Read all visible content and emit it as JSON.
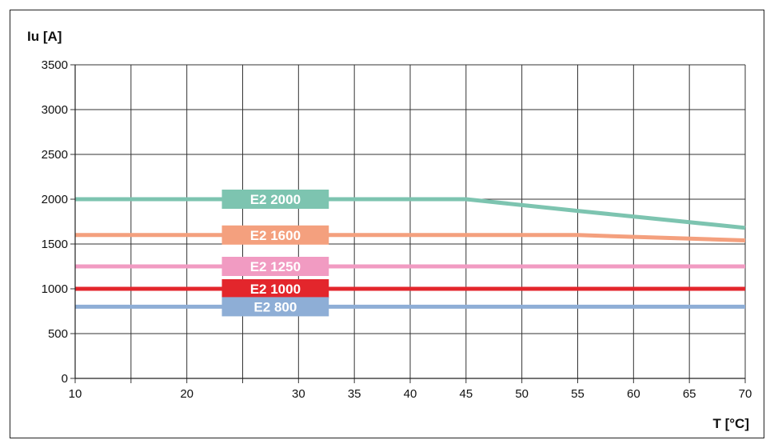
{
  "chart_data": {
    "type": "line",
    "xlabel": "T [°C]",
    "ylabel": "Iu [A]",
    "x_ticks": [
      10,
      20,
      30,
      35,
      40,
      45,
      50,
      55,
      60,
      65,
      70
    ],
    "x_tick_labels": [
      "10",
      "20",
      "30",
      "35",
      "40",
      "45",
      "50",
      "55",
      "60",
      "65",
      "70"
    ],
    "x_extra_gridlines": [
      15,
      25
    ],
    "y_ticks": [
      0,
      500,
      1000,
      1500,
      2000,
      2500,
      3000,
      3500
    ],
    "y_tick_labels": [
      "0",
      "500",
      "1000",
      "1500",
      "2000",
      "2500",
      "3000",
      "3500"
    ],
    "ylim": [
      0,
      3500
    ],
    "grid": true,
    "series": [
      {
        "name": "E2 2000",
        "color": "#7dc4b0",
        "points": [
          [
            10,
            2000
          ],
          [
            45,
            2000
          ],
          [
            55,
            1870
          ],
          [
            70,
            1680
          ]
        ]
      },
      {
        "name": "E2 1600",
        "color": "#f4a07e",
        "points": [
          [
            10,
            1600
          ],
          [
            55,
            1600
          ],
          [
            65,
            1560
          ],
          [
            70,
            1540
          ]
        ]
      },
      {
        "name": "E2 1250",
        "color": "#f19bc2",
        "points": [
          [
            10,
            1250
          ],
          [
            70,
            1250
          ]
        ]
      },
      {
        "name": "E2 1000",
        "color": "#e3262c",
        "points": [
          [
            10,
            1000
          ],
          [
            70,
            1000
          ]
        ]
      },
      {
        "name": "E2 800",
        "color": "#8eaed6",
        "points": [
          [
            10,
            800
          ],
          [
            70,
            800
          ]
        ]
      }
    ]
  }
}
